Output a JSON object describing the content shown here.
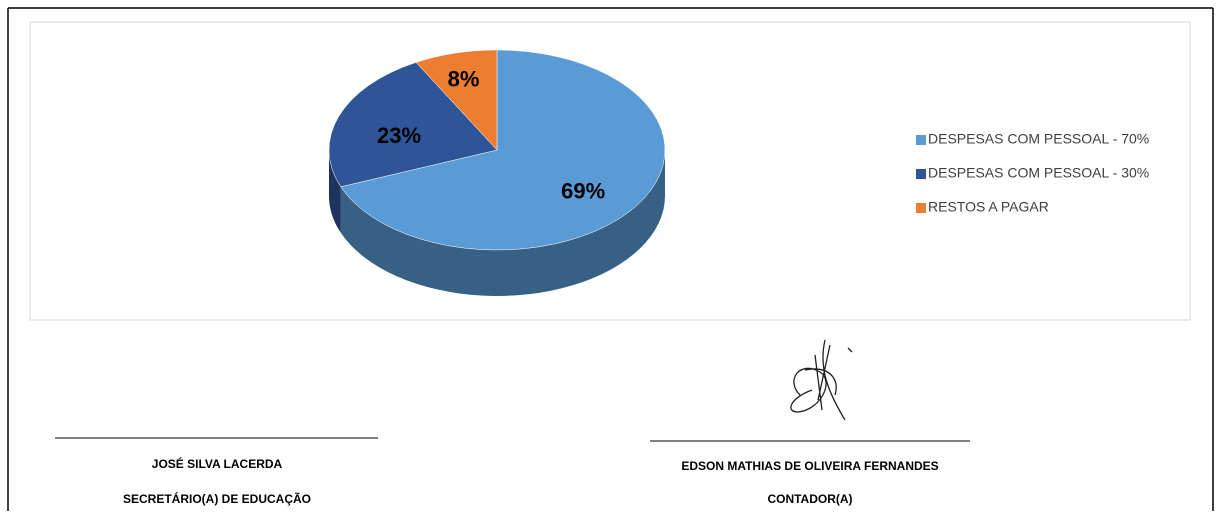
{
  "chart_data": {
    "type": "pie",
    "categories": [
      "DESPESAS COM PESSOAL - 70%",
      "DESPESAS COM PESSOAL - 30%",
      "RESTOS A PAGAR"
    ],
    "values": [
      69,
      23,
      8
    ],
    "value_labels": [
      "69%",
      "23%",
      "8%"
    ],
    "colors": [
      "#5b9bd5",
      "#2e5597",
      "#ed7d31"
    ],
    "legend": "right"
  },
  "signatures": [
    {
      "name": "JOSÉ SILVA LACERDA",
      "role": "SECRETÁRIO(A) DE EDUCAÇÃO"
    },
    {
      "name": "EDSON MATHIAS DE OLIVEIRA FERNANDES",
      "role": "CONTADOR(A)"
    }
  ]
}
